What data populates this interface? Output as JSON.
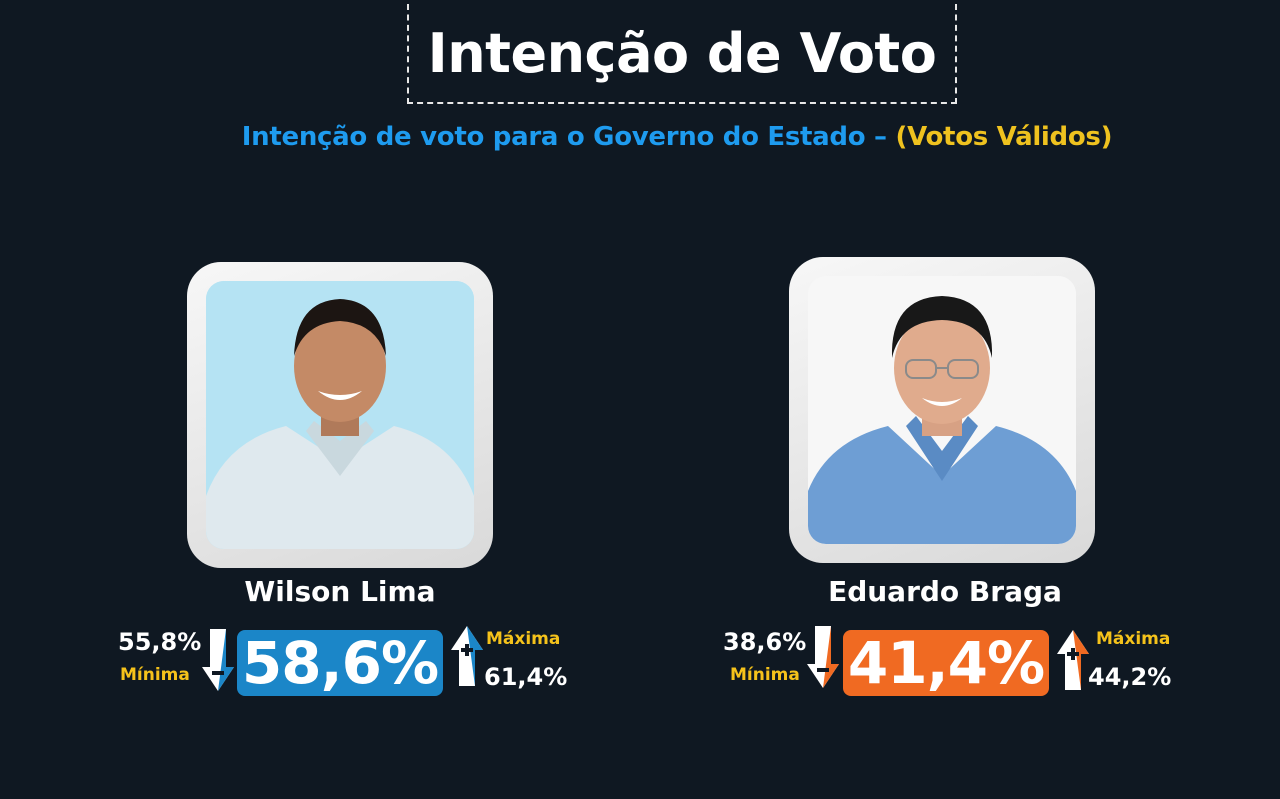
{
  "header": {
    "title": "Intenção de Voto",
    "subtitle_main": "Intenção de voto para o Governo do Estado – ",
    "subtitle_accent": "(Votos Válidos)"
  },
  "labels": {
    "min": "Mínima",
    "max": "Máxima"
  },
  "colors": {
    "background": "#0f1822",
    "subtitle_blue": "#1e9bef",
    "accent_yellow": "#efc21f",
    "candidate_1": "#1b86c8",
    "candidate_2": "#f06a22"
  },
  "chart_data": {
    "type": "table",
    "title": "Intenção de Voto",
    "subtitle": "Intenção de voto para o Governo do Estado – (Votos Válidos)",
    "series": [
      {
        "name": "Wilson Lima",
        "value": "58,6%",
        "min": "55,8%",
        "max": "61,4%",
        "value_num": 58.6,
        "min_num": 55.8,
        "max_num": 61.4
      },
      {
        "name": "Eduardo Braga",
        "value": "41,4%",
        "min": "38,6%",
        "max": "44,2%",
        "value_num": 41.4,
        "min_num": 38.6,
        "max_num": 44.2
      }
    ]
  }
}
